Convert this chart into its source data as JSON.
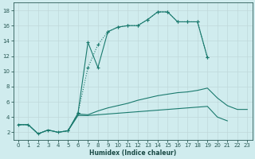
{
  "xlabel": "Humidex (Indice chaleur)",
  "bg_color": "#d0ecee",
  "grid_color": "#c0d8da",
  "line_color": "#1a7a6e",
  "xlim": [
    -0.5,
    23.5
  ],
  "ylim": [
    1.0,
    19.0
  ],
  "xticks": [
    0,
    1,
    2,
    3,
    4,
    5,
    6,
    7,
    8,
    9,
    10,
    11,
    12,
    13,
    14,
    15,
    16,
    17,
    18,
    19,
    20,
    21,
    22,
    23
  ],
  "yticks": [
    2,
    4,
    6,
    8,
    10,
    12,
    14,
    16,
    18
  ],
  "curves": [
    {
      "x": [
        0,
        1,
        2,
        3,
        4,
        5,
        6,
        7,
        8,
        9,
        10,
        11,
        12,
        13,
        14,
        15,
        16,
        17,
        18,
        19,
        20,
        21
      ],
      "y": [
        3,
        3,
        1.8,
        2.3,
        2.0,
        2.2,
        4.5,
        10.5,
        13.5,
        15.2,
        15.8,
        16.0,
        16.0,
        16.8,
        17.8,
        17.8,
        16.5,
        16.5,
        16.5,
        11.8,
        null,
        null
      ],
      "linestyle": "dotted",
      "marker": "+"
    },
    {
      "x": [
        5,
        6,
        7,
        8,
        9,
        10,
        11,
        12,
        13,
        14,
        15,
        16,
        17,
        18,
        19,
        20,
        21
      ],
      "y": [
        2.2,
        4.5,
        13.8,
        10.5,
        15.2,
        15.8,
        16.0,
        16.0,
        16.8,
        17.8,
        17.8,
        16.5,
        16.5,
        16.5,
        11.8,
        null,
        null
      ],
      "linestyle": "solid",
      "marker": "+"
    },
    {
      "x": [
        0,
        1,
        2,
        3,
        4,
        5,
        6,
        7,
        8,
        9,
        10,
        11,
        12,
        13,
        14,
        15,
        16,
        17,
        18,
        19,
        20,
        21,
        22,
        23
      ],
      "y": [
        3,
        3,
        1.8,
        2.3,
        2.0,
        2.2,
        4.4,
        4.3,
        4.8,
        5.2,
        5.5,
        5.8,
        6.2,
        6.5,
        6.8,
        7.0,
        7.2,
        7.3,
        7.5,
        7.8,
        6.5,
        5.5,
        5.0,
        5.0
      ],
      "linestyle": "solid",
      "marker": "+"
    },
    {
      "x": [
        0,
        1,
        2,
        3,
        4,
        5,
        6,
        7,
        8,
        9,
        10,
        11,
        12,
        13,
        14,
        15,
        16,
        17,
        18,
        19,
        20,
        21,
        22,
        23
      ],
      "y": [
        3,
        3,
        1.8,
        2.3,
        2.0,
        2.2,
        4.2,
        4.2,
        4.3,
        4.4,
        4.5,
        4.6,
        4.7,
        4.8,
        4.9,
        5.0,
        5.1,
        5.2,
        5.3,
        5.4,
        4.0,
        3.5,
        null,
        null
      ],
      "linestyle": "solid",
      "marker": null
    }
  ]
}
